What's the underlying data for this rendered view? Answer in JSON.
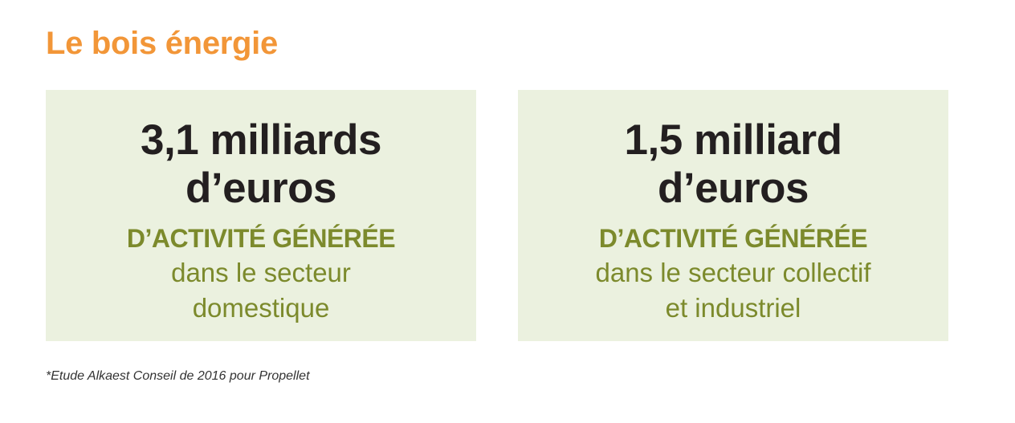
{
  "title": "Le bois énergie",
  "colors": {
    "title": "#f29638",
    "card_background": "#ebf1df",
    "amount_text": "#231f20",
    "accent_text": "#7c8a2c"
  },
  "cards": [
    {
      "amount_line1": "3,1 milliards",
      "amount_line2": "d’euros",
      "heading": "D’ACTIVITÉ GÉNÉRÉE",
      "desc_line1": "dans le secteur",
      "desc_line2": "domestique"
    },
    {
      "amount_line1": "1,5 milliard",
      "amount_line2": "d’euros",
      "heading": "D’ACTIVITÉ GÉNÉRÉE",
      "desc_line1": "dans le secteur collectif",
      "desc_line2": "et industriel"
    }
  ],
  "footnote": "*Etude Alkaest Conseil de 2016 pour Propellet"
}
